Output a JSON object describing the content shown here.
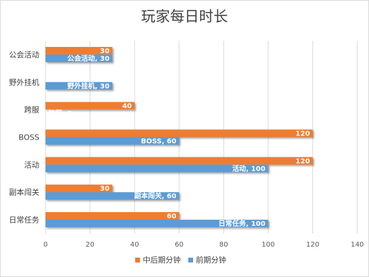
{
  "chart_data": {
    "type": "bar",
    "orientation": "horizontal",
    "title": "玩家每日时长",
    "categories": [
      "日常任务",
      "副本闯关",
      "活动",
      "BOSS",
      "跨服",
      "野外挂机",
      "公会活动"
    ],
    "series": [
      {
        "name": "中后期分钟",
        "color": "#ED7D31",
        "values": [
          60,
          30,
          120,
          120,
          40,
          0,
          30
        ],
        "labels": [
          "60",
          "30",
          "120",
          "120",
          "40",
          "0",
          "30"
        ]
      },
      {
        "name": "前期分钟",
        "color": "#5B9BD5",
        "values": [
          100,
          60,
          100,
          60,
          0,
          30,
          30
        ],
        "labels": [
          "日常任务, 100",
          "副本闯关, 60",
          "活动, 100",
          "BOSS, 60",
          "跨服, 0",
          "野外挂机, 30",
          "公会活动, 30"
        ]
      }
    ],
    "xlim": [
      0,
      140
    ],
    "xticks": [
      0,
      20,
      40,
      60,
      80,
      100,
      120,
      140
    ],
    "grid": "vertical",
    "legend": "bottom"
  }
}
